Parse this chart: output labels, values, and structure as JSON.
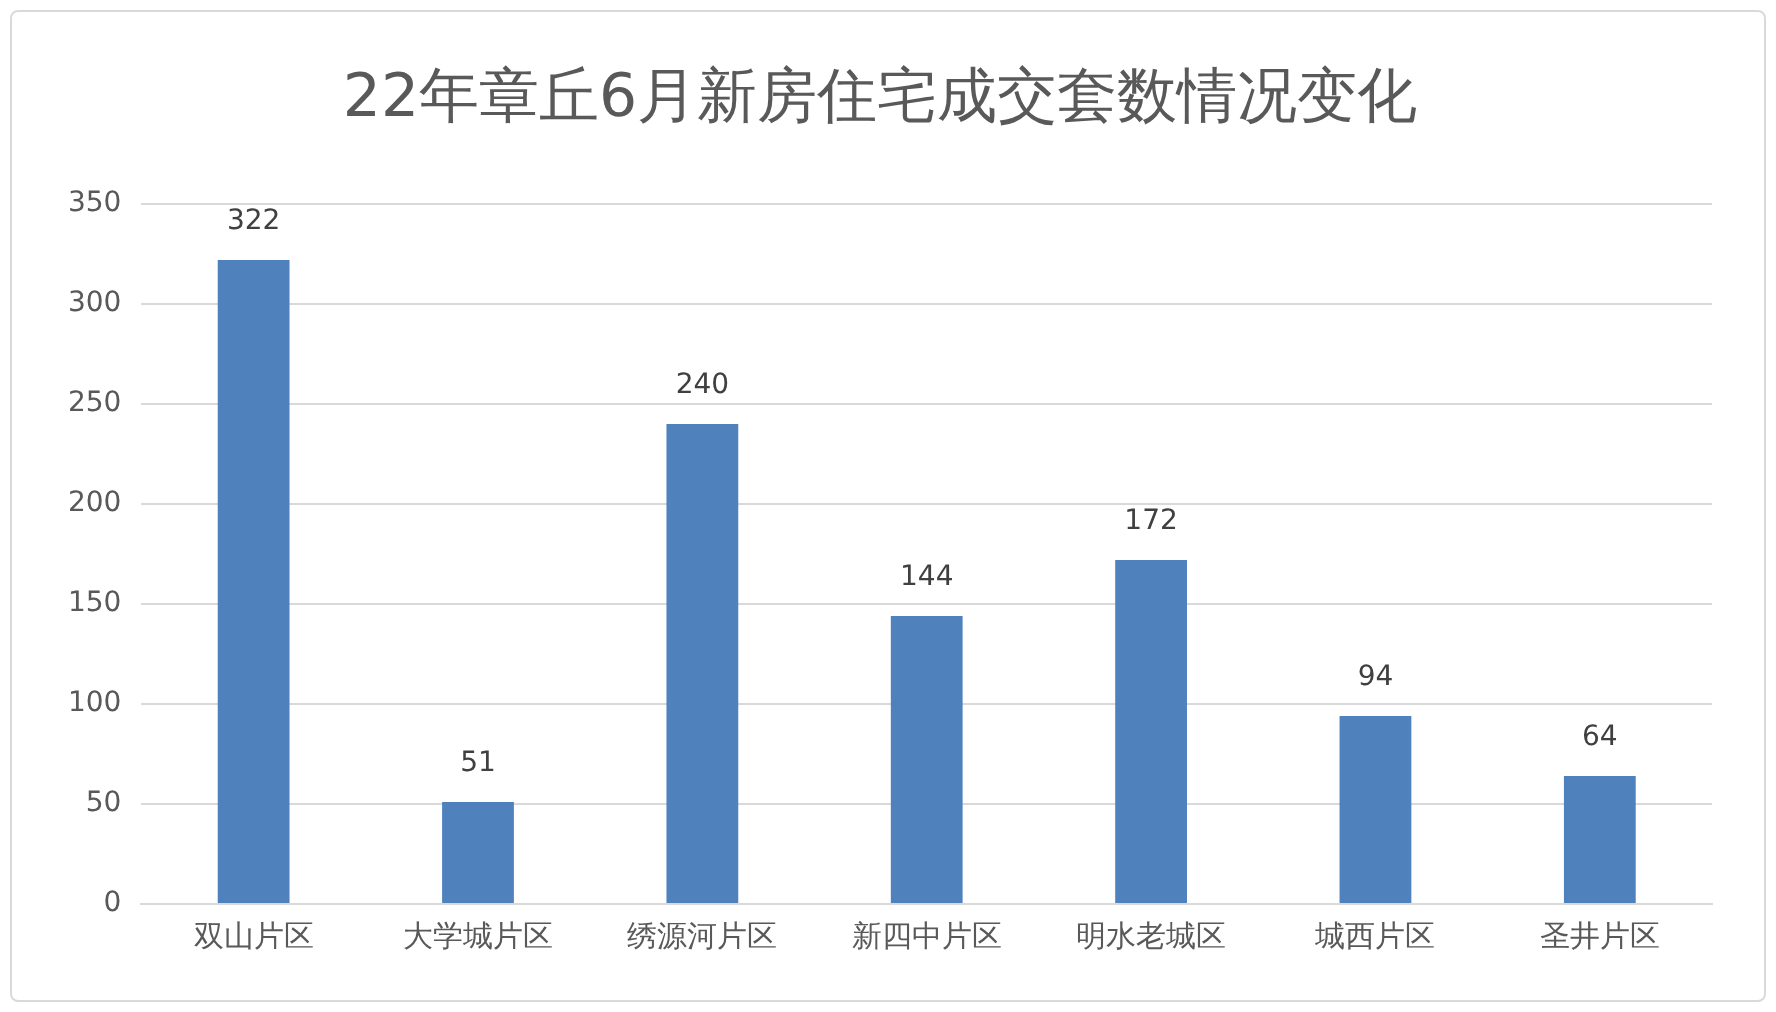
{
  "chart_data": {
    "type": "bar",
    "title": "22年章丘6月新房住宅成交套数情况变化",
    "categories": [
      "双山片区",
      "大学城片区",
      "绣源河片区",
      "新四中片区",
      "明水老城区",
      "城西片区",
      "圣井片区"
    ],
    "values": [
      322,
      51,
      240,
      144,
      172,
      94,
      64
    ],
    "color": "#4f81bd",
    "ylim": [
      0,
      350
    ],
    "yticks": [
      0,
      50,
      100,
      150,
      200,
      250,
      300,
      350
    ],
    "grid": "y",
    "data_labels": true,
    "legend": false
  }
}
